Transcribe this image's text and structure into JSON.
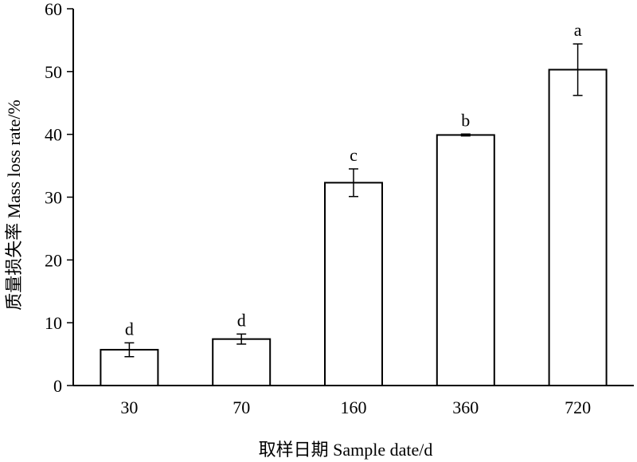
{
  "chart_data": {
    "type": "bar",
    "title": "",
    "xlabel": "取样日期 Sample date/d",
    "ylabel": "质量损失率 Mass loss rate/%",
    "ylim": [
      0,
      60
    ],
    "yticks": [
      0,
      10,
      20,
      30,
      40,
      50,
      60
    ],
    "categories": [
      "30",
      "70",
      "160",
      "360",
      "720"
    ],
    "values": [
      5.7,
      7.4,
      32.3,
      39.9,
      50.3
    ],
    "errors": [
      1.1,
      0.8,
      2.2,
      0.15,
      4.1
    ],
    "significance_letters": [
      "d",
      "d",
      "c",
      "b",
      "a"
    ],
    "bar_fill": "#ffffff",
    "bar_stroke": "#000000",
    "grid": false,
    "legend": "none"
  }
}
